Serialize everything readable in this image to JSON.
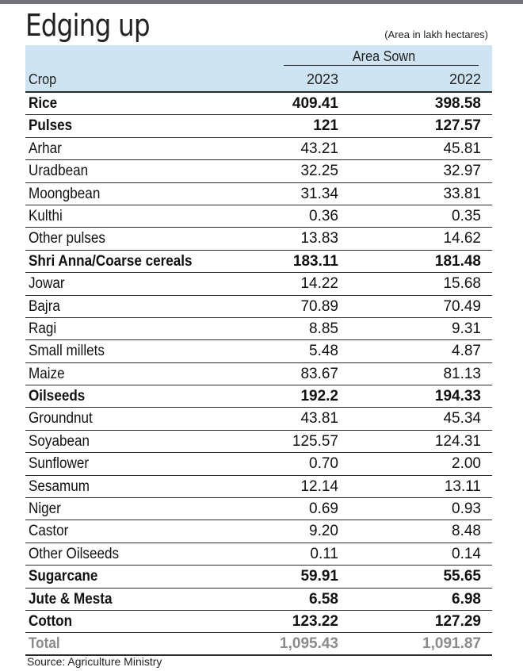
{
  "title": "Edging up",
  "unit_note": "(Area in lakh hectares)",
  "header": {
    "group_label": "Area Sown",
    "crop_label": "Crop",
    "year1": "2023",
    "year2": "2022"
  },
  "rows": [
    {
      "crop": "Rice",
      "y2023": "409.41",
      "y2022": "398.58",
      "bold": true
    },
    {
      "crop": "Pulses",
      "y2023": "121",
      "y2022": "127.57",
      "bold": true
    },
    {
      "crop": "Arhar",
      "y2023": "43.21",
      "y2022": "45.81",
      "bold": false
    },
    {
      "crop": "Uradbean",
      "y2023": "32.25",
      "y2022": "32.97",
      "bold": false
    },
    {
      "crop": "Moongbean",
      "y2023": "31.34",
      "y2022": "33.81",
      "bold": false
    },
    {
      "crop": "Kulthi",
      "y2023": "0.36",
      "y2022": "0.35",
      "bold": false
    },
    {
      "crop": "Other pulses",
      "y2023": "13.83",
      "y2022": "14.62",
      "bold": false
    },
    {
      "crop": "Shri Anna/Coarse cereals",
      "y2023": "183.11",
      "y2022": "181.48",
      "bold": true
    },
    {
      "crop": "Jowar",
      "y2023": "14.22",
      "y2022": "15.68",
      "bold": false
    },
    {
      "crop": "Bajra",
      "y2023": "70.89",
      "y2022": "70.49",
      "bold": false
    },
    {
      "crop": "Ragi",
      "y2023": "8.85",
      "y2022": "9.31",
      "bold": false
    },
    {
      "crop": "Small millets",
      "y2023": "5.48",
      "y2022": "4.87",
      "bold": false
    },
    {
      "crop": "Maize",
      "y2023": "83.67",
      "y2022": "81.13",
      "bold": false
    },
    {
      "crop": "Oilseeds",
      "y2023": "192.2",
      "y2022": "194.33",
      "bold": true
    },
    {
      "crop": "Groundnut",
      "y2023": "43.81",
      "y2022": "45.34",
      "bold": false
    },
    {
      "crop": "Soyabean",
      "y2023": "125.57",
      "y2022": "124.31",
      "bold": false
    },
    {
      "crop": "Sunflower",
      "y2023": "0.70",
      "y2022": "2.00",
      "bold": false
    },
    {
      "crop": "Sesamum",
      "y2023": "12.14",
      "y2022": "13.11",
      "bold": false
    },
    {
      "crop": "Niger",
      "y2023": "0.69",
      "y2022": "0.93",
      "bold": false
    },
    {
      "crop": "Castor",
      "y2023": "9.20",
      "y2022": "8.48",
      "bold": false
    },
    {
      "crop": "Other Oilseeds",
      "y2023": "0.11",
      "y2022": "0.14",
      "bold": false
    },
    {
      "crop": "Sugarcane",
      "y2023": "59.91",
      "y2022": "55.65",
      "bold": true
    },
    {
      "crop": "Jute & Mesta",
      "y2023": "6.58",
      "y2022": "6.98",
      "bold": true
    },
    {
      "crop": "Cotton",
      "y2023": "123.22",
      "y2022": "127.29",
      "bold": true
    }
  ],
  "total": {
    "crop": "Total",
    "y2023": "1,095.43",
    "y2022": "1,091.87"
  },
  "source": "Source: Agriculture Ministry",
  "colors": {
    "header_bg": "#cfe4f3",
    "total_text": "#8a8a8a",
    "top_bar": "#6f7379"
  }
}
